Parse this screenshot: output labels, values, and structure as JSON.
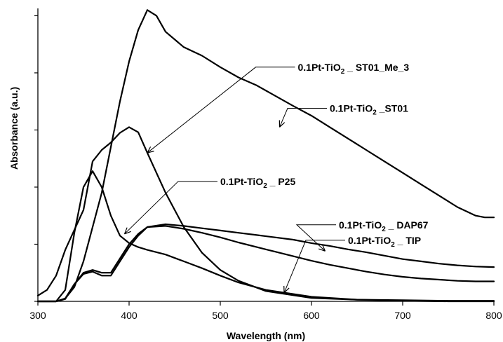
{
  "chart_data": {
    "type": "line",
    "title": "",
    "xlabel": "Wavelength (nm)",
    "ylabel": "Absorbance (a.u.)",
    "xlim": [
      300,
      800
    ],
    "ylim": [
      0,
      5
    ],
    "x_ticks": [
      300,
      400,
      500,
      600,
      700,
      800
    ],
    "x_tick_labels": [
      "300",
      "400",
      "500",
      "600",
      "700",
      "800"
    ],
    "y_ticks": [
      0,
      1,
      2,
      3,
      4,
      5
    ],
    "y_tick_labels_visible": false,
    "grid": false,
    "legend": "callout labels with arrows",
    "line_color": "#000000",
    "series": [
      {
        "name": "0.1Pt-TiO2 _ ST01_Me_3",
        "label_parts": [
          "0.1Pt-TiO",
          "2",
          " _ ST01_Me_3"
        ],
        "points": [
          [
            300,
            0.1
          ],
          [
            310,
            0.2
          ],
          [
            320,
            0.45
          ],
          [
            330,
            0.9
          ],
          [
            340,
            1.25
          ],
          [
            350,
            1.6
          ],
          [
            360,
            2.45
          ],
          [
            370,
            2.65
          ],
          [
            380,
            2.78
          ],
          [
            390,
            2.95
          ],
          [
            400,
            3.05
          ],
          [
            410,
            2.96
          ],
          [
            420,
            2.6
          ],
          [
            440,
            1.9
          ],
          [
            460,
            1.3
          ],
          [
            480,
            0.85
          ],
          [
            500,
            0.55
          ],
          [
            520,
            0.36
          ],
          [
            550,
            0.18
          ],
          [
            600,
            0.06
          ],
          [
            650,
            0.03
          ],
          [
            700,
            0.02
          ],
          [
            750,
            0.01
          ],
          [
            800,
            0.01
          ]
        ]
      },
      {
        "name": "0.1Pt-TiO2 _ST01",
        "label_parts": [
          "0.1Pt-TiO",
          "2",
          " _ST01"
        ],
        "points": [
          [
            300,
            0
          ],
          [
            320,
            0
          ],
          [
            330,
            0.05
          ],
          [
            340,
            0.25
          ],
          [
            350,
            0.7
          ],
          [
            360,
            1.3
          ],
          [
            370,
            1.9
          ],
          [
            380,
            2.7
          ],
          [
            390,
            3.5
          ],
          [
            400,
            4.2
          ],
          [
            410,
            4.75
          ],
          [
            420,
            5.1
          ],
          [
            430,
            5.0
          ],
          [
            440,
            4.72
          ],
          [
            460,
            4.45
          ],
          [
            480,
            4.3
          ],
          [
            500,
            4.1
          ],
          [
            520,
            3.92
          ],
          [
            540,
            3.78
          ],
          [
            560,
            3.6
          ],
          [
            580,
            3.42
          ],
          [
            600,
            3.25
          ],
          [
            620,
            3.05
          ],
          [
            640,
            2.85
          ],
          [
            660,
            2.65
          ],
          [
            680,
            2.45
          ],
          [
            700,
            2.25
          ],
          [
            720,
            2.05
          ],
          [
            740,
            1.85
          ],
          [
            760,
            1.65
          ],
          [
            780,
            1.5
          ],
          [
            790,
            1.47
          ],
          [
            800,
            1.47
          ]
        ]
      },
      {
        "name": "0.1Pt-TiO2 _ P25",
        "label_parts": [
          "0.1Pt-TiO",
          "2",
          " _ P25"
        ],
        "points": [
          [
            300,
            0
          ],
          [
            320,
            0
          ],
          [
            330,
            0.2
          ],
          [
            340,
            1.2
          ],
          [
            350,
            2.0
          ],
          [
            360,
            2.28
          ],
          [
            370,
            2.0
          ],
          [
            380,
            1.5
          ],
          [
            390,
            1.15
          ],
          [
            400,
            1.02
          ],
          [
            410,
            0.95
          ],
          [
            420,
            0.9
          ],
          [
            440,
            0.82
          ],
          [
            460,
            0.7
          ],
          [
            480,
            0.58
          ],
          [
            500,
            0.45
          ],
          [
            520,
            0.33
          ],
          [
            550,
            0.2
          ],
          [
            600,
            0.08
          ],
          [
            650,
            0.03
          ],
          [
            700,
            0.01
          ],
          [
            750,
            0
          ],
          [
            800,
            0
          ]
        ]
      },
      {
        "name": "0.1Pt-TiO2 _ DAP67",
        "label_parts": [
          "0.1Pt-TiO",
          "2",
          " _ DAP67"
        ],
        "points": [
          [
            300,
            0
          ],
          [
            320,
            0
          ],
          [
            330,
            0.05
          ],
          [
            340,
            0.3
          ],
          [
            350,
            0.5
          ],
          [
            360,
            0.55
          ],
          [
            370,
            0.5
          ],
          [
            380,
            0.5
          ],
          [
            390,
            0.75
          ],
          [
            400,
            1.0
          ],
          [
            410,
            1.18
          ],
          [
            420,
            1.3
          ],
          [
            440,
            1.35
          ],
          [
            460,
            1.32
          ],
          [
            480,
            1.28
          ],
          [
            500,
            1.24
          ],
          [
            520,
            1.2
          ],
          [
            540,
            1.16
          ],
          [
            560,
            1.12
          ],
          [
            580,
            1.08
          ],
          [
            600,
            1.02
          ],
          [
            620,
            0.97
          ],
          [
            640,
            0.91
          ],
          [
            660,
            0.86
          ],
          [
            680,
            0.8
          ],
          [
            700,
            0.74
          ],
          [
            720,
            0.7
          ],
          [
            740,
            0.66
          ],
          [
            760,
            0.63
          ],
          [
            780,
            0.61
          ],
          [
            800,
            0.6
          ]
        ]
      },
      {
        "name": "0.1Pt-TiO2 _ TIP",
        "label_parts": [
          "0.1Pt-TiO",
          "2",
          " _ TIP"
        ],
        "points": [
          [
            300,
            0
          ],
          [
            320,
            0
          ],
          [
            330,
            0.04
          ],
          [
            340,
            0.3
          ],
          [
            350,
            0.48
          ],
          [
            360,
            0.52
          ],
          [
            370,
            0.45
          ],
          [
            380,
            0.45
          ],
          [
            390,
            0.7
          ],
          [
            400,
            0.95
          ],
          [
            410,
            1.15
          ],
          [
            420,
            1.3
          ],
          [
            440,
            1.32
          ],
          [
            460,
            1.27
          ],
          [
            480,
            1.2
          ],
          [
            500,
            1.12
          ],
          [
            520,
            1.03
          ],
          [
            540,
            0.95
          ],
          [
            560,
            0.87
          ],
          [
            580,
            0.79
          ],
          [
            600,
            0.71
          ],
          [
            620,
            0.64
          ],
          [
            640,
            0.58
          ],
          [
            660,
            0.52
          ],
          [
            680,
            0.47
          ],
          [
            700,
            0.43
          ],
          [
            720,
            0.4
          ],
          [
            740,
            0.38
          ],
          [
            760,
            0.36
          ],
          [
            780,
            0.35
          ],
          [
            800,
            0.35
          ]
        ]
      }
    ],
    "annotations": [
      {
        "series": 0,
        "arrow_tip": [
          420,
          2.6
        ],
        "label_anchor": [
          585,
          4.1
        ]
      },
      {
        "series": 1,
        "arrow_tip": [
          565,
          3.05
        ],
        "label_anchor": [
          620,
          3.38
        ]
      },
      {
        "series": 2,
        "arrow_tip": [
          395,
          1.18
        ],
        "label_anchor": [
          500,
          2.1
        ]
      },
      {
        "series": 3,
        "arrow_tip": [
          615,
          0.88
        ],
        "label_anchor": [
          630,
          1.34
        ]
      },
      {
        "series": 4,
        "arrow_tip": [
          570,
          0.15
        ],
        "label_anchor": [
          640,
          1.07
        ]
      }
    ]
  }
}
